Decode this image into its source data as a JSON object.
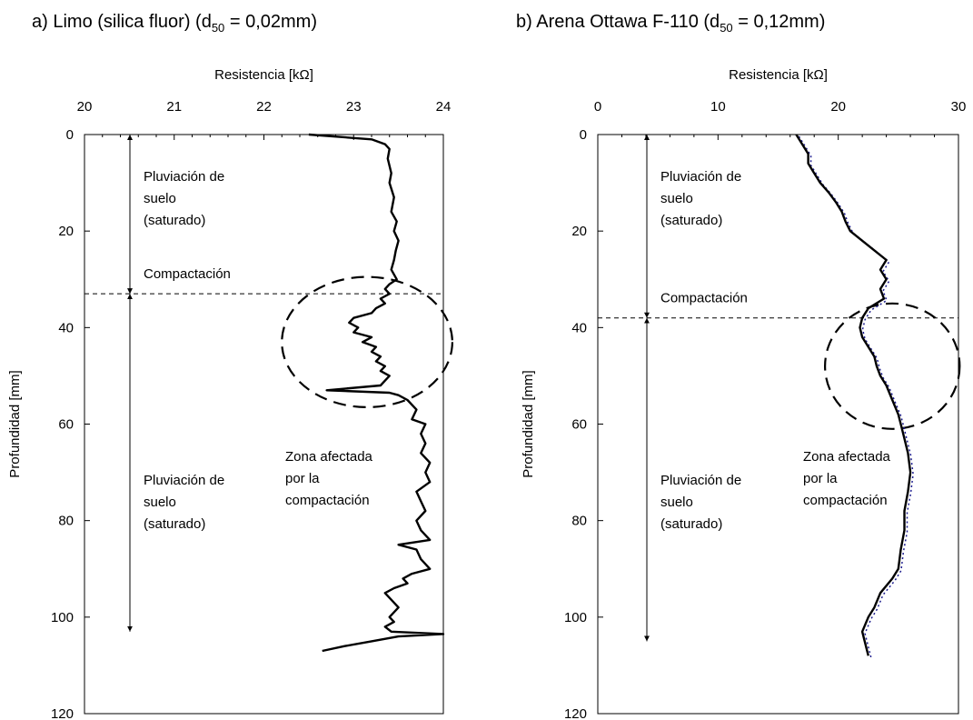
{
  "chart_data": [
    {
      "type": "line",
      "title_prefix": "a) Limo (silica fluor) (d",
      "title_sub": "50",
      "title_suffix": " = 0,02mm)",
      "xlabel": "Resistencia [kΩ]",
      "ylabel": "Profundidad [mm]",
      "xlim": [
        20,
        24
      ],
      "ylim": [
        0,
        120
      ],
      "y_inverted": true,
      "x_axis_position": "top",
      "xticks": [
        "20",
        "21",
        "22",
        "23",
        "24"
      ],
      "yticks": [
        "0",
        "20",
        "40",
        "60",
        "80",
        "100",
        "120"
      ],
      "grid": false,
      "compaction_depth": 33,
      "annotations": {
        "upper_zone": [
          "Pluviación de",
          "suelo",
          "(saturado)"
        ],
        "compaction": "Compactación",
        "lower_zone": [
          "Pluviación de",
          "suelo",
          "(saturado)"
        ],
        "affected": [
          "Zona afectada",
          "por la",
          "compactación"
        ]
      },
      "arrow_upper": [
        0,
        33
      ],
      "arrow_lower": [
        33,
        103
      ],
      "affected_circle": {
        "center": [
          23.15,
          43
        ],
        "radius_x": 0.95,
        "radius_y": 13.5
      },
      "series": [
        {
          "depth": [
            0,
            1,
            2,
            3,
            5,
            8,
            10,
            13,
            16,
            18,
            20,
            22,
            24,
            26,
            28,
            30,
            31,
            32,
            33,
            34,
            35,
            36,
            37,
            38,
            39,
            40,
            41,
            42,
            43,
            44,
            45,
            46,
            47,
            48,
            49,
            50,
            51,
            52,
            53,
            53.5,
            54,
            55,
            57,
            59,
            60,
            62,
            64,
            66,
            68,
            70,
            72,
            74,
            76,
            78,
            80,
            82,
            84,
            85,
            86,
            88,
            90,
            91,
            92,
            93,
            94,
            95,
            96,
            98,
            100,
            101,
            102,
            103,
            103.5,
            104,
            105,
            106,
            107
          ],
          "values": [
            22.5,
            23.2,
            23.35,
            23.4,
            23.38,
            23.42,
            23.4,
            23.45,
            23.42,
            23.48,
            23.45,
            23.5,
            23.47,
            23.45,
            23.42,
            23.48,
            23.4,
            23.35,
            23.4,
            23.3,
            23.35,
            23.25,
            23.2,
            23.0,
            22.95,
            23.05,
            23.0,
            23.2,
            23.1,
            23.25,
            23.2,
            23.3,
            23.25,
            23.35,
            23.3,
            23.4,
            23.35,
            23.3,
            22.7,
            23.4,
            23.5,
            23.6,
            23.7,
            23.65,
            23.8,
            23.75,
            23.8,
            23.75,
            23.85,
            23.8,
            23.85,
            23.7,
            23.75,
            23.8,
            23.7,
            23.75,
            23.85,
            23.5,
            23.7,
            23.75,
            23.85,
            23.65,
            23.55,
            23.6,
            23.45,
            23.35,
            23.4,
            23.5,
            23.4,
            23.45,
            23.35,
            23.42,
            24.0,
            23.5,
            23.2,
            22.9,
            22.65
          ]
        }
      ]
    },
    {
      "type": "line",
      "title_prefix": "b) Arena Ottawa F-110 (d",
      "title_sub": "50",
      "title_suffix": " = 0,12mm)",
      "xlabel": "Resistencia [kΩ]",
      "ylabel": "Profundidad [mm]",
      "xlim": [
        0,
        30
      ],
      "ylim": [
        0,
        120
      ],
      "y_inverted": true,
      "x_axis_position": "top",
      "xticks": [
        "0",
        "10",
        "20",
        "30"
      ],
      "yticks": [
        "0",
        "20",
        "40",
        "60",
        "80",
        "100",
        "120"
      ],
      "grid": false,
      "compaction_depth": 38,
      "annotations": {
        "upper_zone": [
          "Pluviación de",
          "suelo",
          "(saturado)"
        ],
        "compaction": "Compactación",
        "lower_zone": [
          "Pluviación de",
          "suelo",
          "(saturado)"
        ],
        "affected": [
          "Zona afectada",
          "por la",
          "compactación"
        ]
      },
      "arrow_upper": [
        0,
        38
      ],
      "arrow_lower": [
        38,
        105
      ],
      "affected_circle": {
        "center": [
          24.5,
          48
        ],
        "radius_x": 5.6,
        "radius_y": 13
      },
      "series": [
        {
          "depth": [
            0,
            2,
            4,
            6,
            8,
            10,
            12,
            14,
            16,
            18,
            20,
            22,
            24,
            26,
            28,
            30,
            32,
            34,
            36,
            38,
            40,
            42,
            44,
            46,
            48,
            50,
            52,
            55,
            58,
            60,
            63,
            66,
            70,
            74,
            78,
            82,
            86,
            90,
            92,
            95,
            98,
            100,
            103,
            106,
            108
          ],
          "values": [
            16.5,
            17.0,
            17.5,
            17.5,
            18.0,
            18.5,
            19.2,
            19.8,
            20.3,
            20.6,
            21.0,
            22.0,
            23.0,
            24.0,
            23.5,
            24.0,
            23.5,
            23.8,
            22.5,
            22.0,
            21.8,
            22.0,
            22.5,
            23.0,
            23.2,
            23.5,
            24.0,
            24.5,
            25.0,
            25.2,
            25.5,
            25.8,
            26.0,
            25.8,
            25.5,
            25.5,
            25.2,
            25.0,
            24.5,
            23.5,
            23.0,
            22.5,
            22.0,
            22.3,
            22.5
          ]
        }
      ]
    }
  ]
}
